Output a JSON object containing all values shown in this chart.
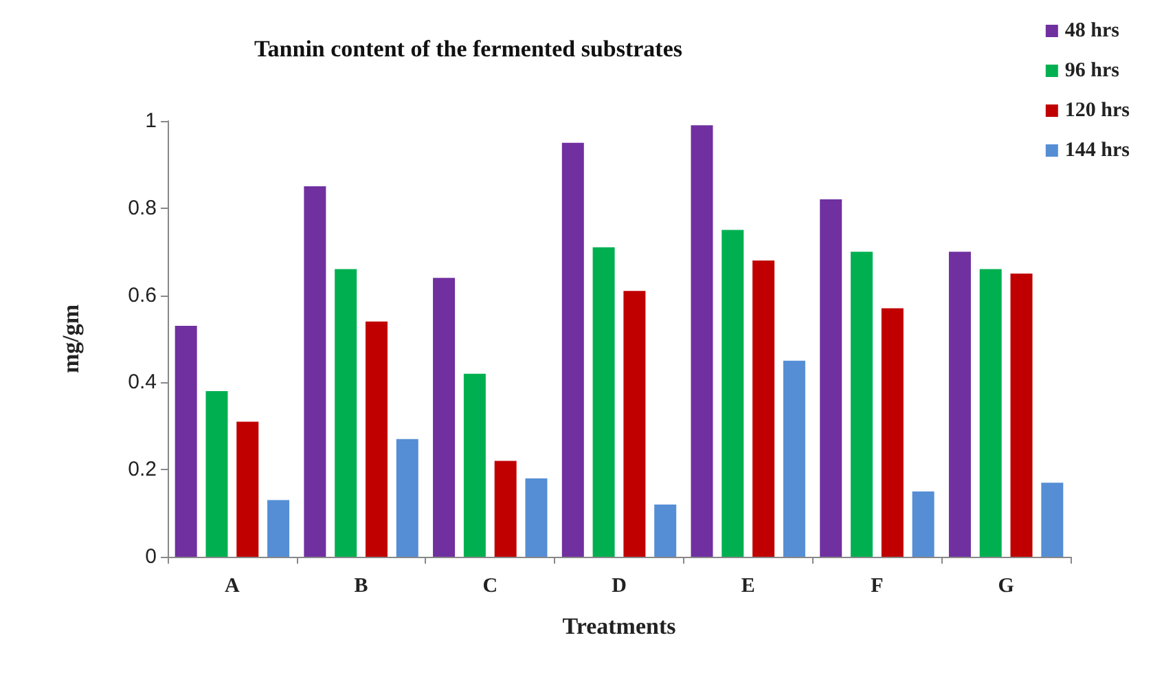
{
  "chart_data": {
    "type": "bar",
    "title": "Tannin content of the fermented substrates",
    "xlabel": "Treatments",
    "ylabel": "mg/gm",
    "categories": [
      "A",
      "B",
      "C",
      "D",
      "E",
      "F",
      "G"
    ],
    "series": [
      {
        "name": "48 hrs",
        "color": "#7030a0",
        "values": [
          0.53,
          0.85,
          0.64,
          0.95,
          0.99,
          0.82,
          0.7
        ]
      },
      {
        "name": "96 hrs",
        "color": "#00b050",
        "values": [
          0.38,
          0.66,
          0.42,
          0.71,
          0.75,
          0.7,
          0.66
        ]
      },
      {
        "name": "120 hrs",
        "color": "#c00000",
        "values": [
          0.31,
          0.54,
          0.22,
          0.61,
          0.68,
          0.57,
          0.65
        ]
      },
      {
        "name": "144 hrs",
        "color": "#558ed5",
        "values": [
          0.13,
          0.27,
          0.18,
          0.12,
          0.45,
          0.15,
          0.17
        ]
      }
    ],
    "ylim": [
      0,
      1
    ],
    "yticks": [
      0,
      0.2,
      0.4,
      0.6,
      0.8,
      1
    ],
    "grid": false,
    "legend": "top right"
  }
}
